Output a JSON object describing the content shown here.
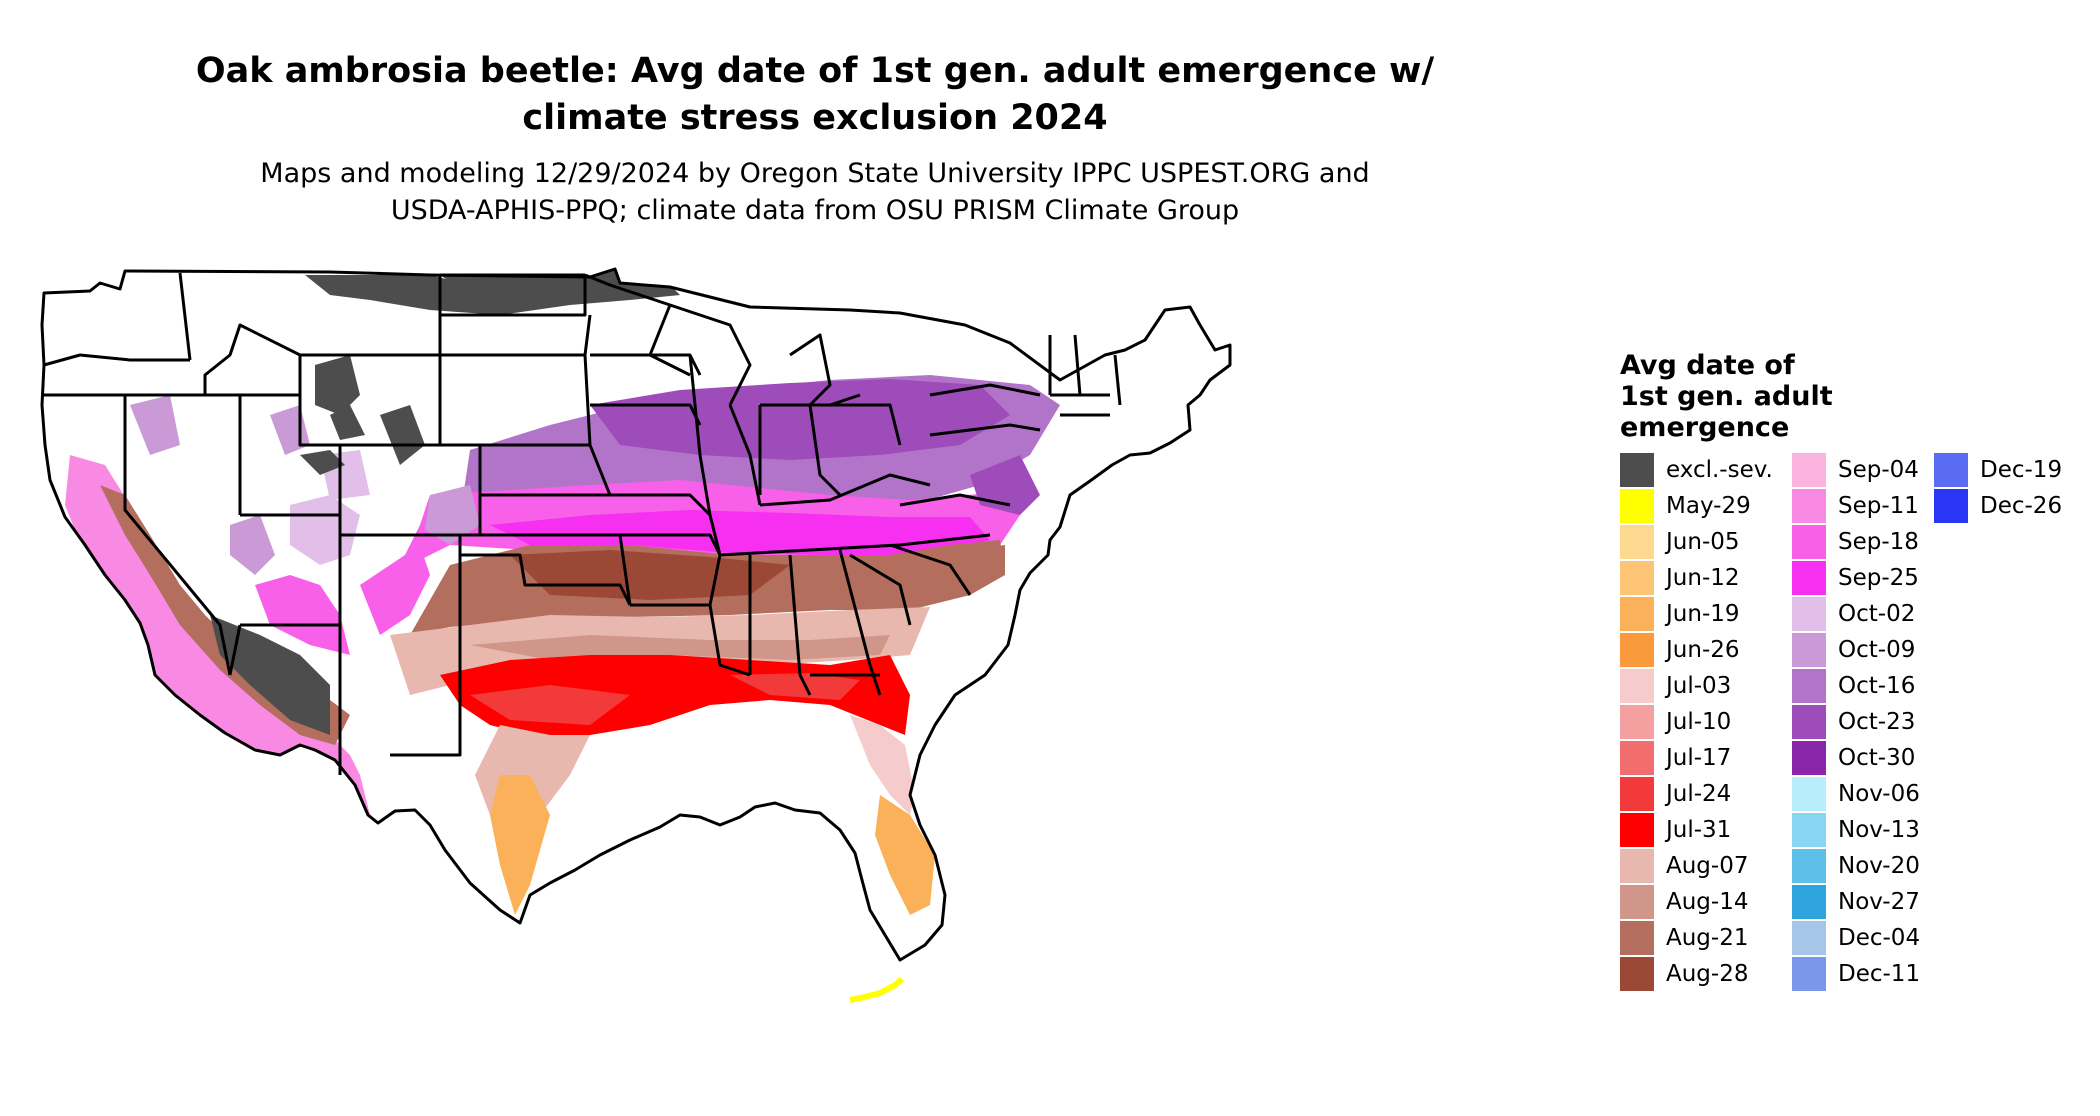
{
  "title_line1": "Oak ambrosia beetle: Avg date of 1st gen. adult emergence w/",
  "title_line2": "climate stress exclusion 2024",
  "subtitle_line1": "Maps and modeling 12/29/2024 by Oregon State University IPPC USPEST.ORG and",
  "subtitle_line2": "USDA-APHIS-PPQ; climate data from OSU PRISM Climate Group",
  "legend": {
    "title_line1": "Avg date of",
    "title_line2": "1st gen. adult",
    "title_line3": "emergence",
    "columns": [
      [
        {
          "label": "excl.-sev.",
          "color": "#4d4d4d"
        },
        {
          "label": "May-29",
          "color": "#ffff00"
        },
        {
          "label": "Jun-05",
          "color": "#fdd98f"
        },
        {
          "label": "Jun-12",
          "color": "#fcc474"
        },
        {
          "label": "Jun-19",
          "color": "#fbb05a"
        },
        {
          "label": "Jun-26",
          "color": "#fa9a3c"
        },
        {
          "label": "Jul-03",
          "color": "#f6cbcb"
        },
        {
          "label": "Jul-10",
          "color": "#f4a0a0"
        },
        {
          "label": "Jul-17",
          "color": "#f26e6e"
        },
        {
          "label": "Jul-24",
          "color": "#f33a3a"
        },
        {
          "label": "Jul-31",
          "color": "#ff0000"
        },
        {
          "label": "Aug-07",
          "color": "#e8b8ae"
        },
        {
          "label": "Aug-14",
          "color": "#d0968a"
        },
        {
          "label": "Aug-21",
          "color": "#b46e5e"
        },
        {
          "label": "Aug-28",
          "color": "#9c4836"
        }
      ],
      [
        {
          "label": "Sep-04",
          "color": "#fab4df"
        },
        {
          "label": "Sep-11",
          "color": "#f98ae3"
        },
        {
          "label": "Sep-18",
          "color": "#f860ea"
        },
        {
          "label": "Sep-25",
          "color": "#f62ff1"
        },
        {
          "label": "Oct-02",
          "color": "#e2bfe8"
        },
        {
          "label": "Oct-09",
          "color": "#c99ad6"
        },
        {
          "label": "Oct-16",
          "color": "#b274c8"
        },
        {
          "label": "Oct-23",
          "color": "#9d4cb9"
        },
        {
          "label": "Oct-30",
          "color": "#8a26aa"
        },
        {
          "label": "Nov-06",
          "color": "#b8edfc"
        },
        {
          "label": "Nov-13",
          "color": "#8ad5f1"
        },
        {
          "label": "Nov-20",
          "color": "#5ec0ea"
        },
        {
          "label": "Nov-27",
          "color": "#2ea6dd"
        },
        {
          "label": "Dec-04",
          "color": "#a6c6e8"
        },
        {
          "label": "Dec-11",
          "color": "#7b97ea"
        }
      ],
      [
        {
          "label": "Dec-19",
          "color": "#5a6df2"
        },
        {
          "label": "Dec-26",
          "color": "#2a35f6"
        }
      ]
    ]
  }
}
